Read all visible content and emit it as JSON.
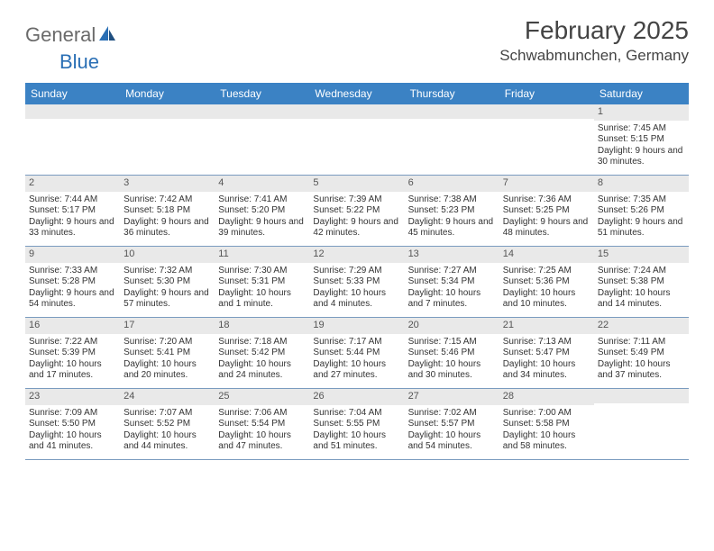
{
  "brand": {
    "general": "General",
    "blue": "Blue"
  },
  "title": {
    "month": "February 2025",
    "location": "Schwabmunchen, Germany"
  },
  "colors": {
    "header_bg": "#3b82c4",
    "header_text": "#ffffff",
    "daynum_bg": "#e9e9e9",
    "rule": "#7a9bbf",
    "brand_gray": "#6a6a6a",
    "brand_blue": "#2a6fb5",
    "page_bg": "#ffffff",
    "text": "#333333"
  },
  "dow": [
    "Sunday",
    "Monday",
    "Tuesday",
    "Wednesday",
    "Thursday",
    "Friday",
    "Saturday"
  ],
  "weeks": [
    [
      {
        "n": "",
        "sr": "",
        "ss": "",
        "dl": ""
      },
      {
        "n": "",
        "sr": "",
        "ss": "",
        "dl": ""
      },
      {
        "n": "",
        "sr": "",
        "ss": "",
        "dl": ""
      },
      {
        "n": "",
        "sr": "",
        "ss": "",
        "dl": ""
      },
      {
        "n": "",
        "sr": "",
        "ss": "",
        "dl": ""
      },
      {
        "n": "",
        "sr": "",
        "ss": "",
        "dl": ""
      },
      {
        "n": "1",
        "sr": "Sunrise: 7:45 AM",
        "ss": "Sunset: 5:15 PM",
        "dl": "Daylight: 9 hours and 30 minutes."
      }
    ],
    [
      {
        "n": "2",
        "sr": "Sunrise: 7:44 AM",
        "ss": "Sunset: 5:17 PM",
        "dl": "Daylight: 9 hours and 33 minutes."
      },
      {
        "n": "3",
        "sr": "Sunrise: 7:42 AM",
        "ss": "Sunset: 5:18 PM",
        "dl": "Daylight: 9 hours and 36 minutes."
      },
      {
        "n": "4",
        "sr": "Sunrise: 7:41 AM",
        "ss": "Sunset: 5:20 PM",
        "dl": "Daylight: 9 hours and 39 minutes."
      },
      {
        "n": "5",
        "sr": "Sunrise: 7:39 AM",
        "ss": "Sunset: 5:22 PM",
        "dl": "Daylight: 9 hours and 42 minutes."
      },
      {
        "n": "6",
        "sr": "Sunrise: 7:38 AM",
        "ss": "Sunset: 5:23 PM",
        "dl": "Daylight: 9 hours and 45 minutes."
      },
      {
        "n": "7",
        "sr": "Sunrise: 7:36 AM",
        "ss": "Sunset: 5:25 PM",
        "dl": "Daylight: 9 hours and 48 minutes."
      },
      {
        "n": "8",
        "sr": "Sunrise: 7:35 AM",
        "ss": "Sunset: 5:26 PM",
        "dl": "Daylight: 9 hours and 51 minutes."
      }
    ],
    [
      {
        "n": "9",
        "sr": "Sunrise: 7:33 AM",
        "ss": "Sunset: 5:28 PM",
        "dl": "Daylight: 9 hours and 54 minutes."
      },
      {
        "n": "10",
        "sr": "Sunrise: 7:32 AM",
        "ss": "Sunset: 5:30 PM",
        "dl": "Daylight: 9 hours and 57 minutes."
      },
      {
        "n": "11",
        "sr": "Sunrise: 7:30 AM",
        "ss": "Sunset: 5:31 PM",
        "dl": "Daylight: 10 hours and 1 minute."
      },
      {
        "n": "12",
        "sr": "Sunrise: 7:29 AM",
        "ss": "Sunset: 5:33 PM",
        "dl": "Daylight: 10 hours and 4 minutes."
      },
      {
        "n": "13",
        "sr": "Sunrise: 7:27 AM",
        "ss": "Sunset: 5:34 PM",
        "dl": "Daylight: 10 hours and 7 minutes."
      },
      {
        "n": "14",
        "sr": "Sunrise: 7:25 AM",
        "ss": "Sunset: 5:36 PM",
        "dl": "Daylight: 10 hours and 10 minutes."
      },
      {
        "n": "15",
        "sr": "Sunrise: 7:24 AM",
        "ss": "Sunset: 5:38 PM",
        "dl": "Daylight: 10 hours and 14 minutes."
      }
    ],
    [
      {
        "n": "16",
        "sr": "Sunrise: 7:22 AM",
        "ss": "Sunset: 5:39 PM",
        "dl": "Daylight: 10 hours and 17 minutes."
      },
      {
        "n": "17",
        "sr": "Sunrise: 7:20 AM",
        "ss": "Sunset: 5:41 PM",
        "dl": "Daylight: 10 hours and 20 minutes."
      },
      {
        "n": "18",
        "sr": "Sunrise: 7:18 AM",
        "ss": "Sunset: 5:42 PM",
        "dl": "Daylight: 10 hours and 24 minutes."
      },
      {
        "n": "19",
        "sr": "Sunrise: 7:17 AM",
        "ss": "Sunset: 5:44 PM",
        "dl": "Daylight: 10 hours and 27 minutes."
      },
      {
        "n": "20",
        "sr": "Sunrise: 7:15 AM",
        "ss": "Sunset: 5:46 PM",
        "dl": "Daylight: 10 hours and 30 minutes."
      },
      {
        "n": "21",
        "sr": "Sunrise: 7:13 AM",
        "ss": "Sunset: 5:47 PM",
        "dl": "Daylight: 10 hours and 34 minutes."
      },
      {
        "n": "22",
        "sr": "Sunrise: 7:11 AM",
        "ss": "Sunset: 5:49 PM",
        "dl": "Daylight: 10 hours and 37 minutes."
      }
    ],
    [
      {
        "n": "23",
        "sr": "Sunrise: 7:09 AM",
        "ss": "Sunset: 5:50 PM",
        "dl": "Daylight: 10 hours and 41 minutes."
      },
      {
        "n": "24",
        "sr": "Sunrise: 7:07 AM",
        "ss": "Sunset: 5:52 PM",
        "dl": "Daylight: 10 hours and 44 minutes."
      },
      {
        "n": "25",
        "sr": "Sunrise: 7:06 AM",
        "ss": "Sunset: 5:54 PM",
        "dl": "Daylight: 10 hours and 47 minutes."
      },
      {
        "n": "26",
        "sr": "Sunrise: 7:04 AM",
        "ss": "Sunset: 5:55 PM",
        "dl": "Daylight: 10 hours and 51 minutes."
      },
      {
        "n": "27",
        "sr": "Sunrise: 7:02 AM",
        "ss": "Sunset: 5:57 PM",
        "dl": "Daylight: 10 hours and 54 minutes."
      },
      {
        "n": "28",
        "sr": "Sunrise: 7:00 AM",
        "ss": "Sunset: 5:58 PM",
        "dl": "Daylight: 10 hours and 58 minutes."
      },
      {
        "n": "",
        "sr": "",
        "ss": "",
        "dl": ""
      }
    ]
  ]
}
